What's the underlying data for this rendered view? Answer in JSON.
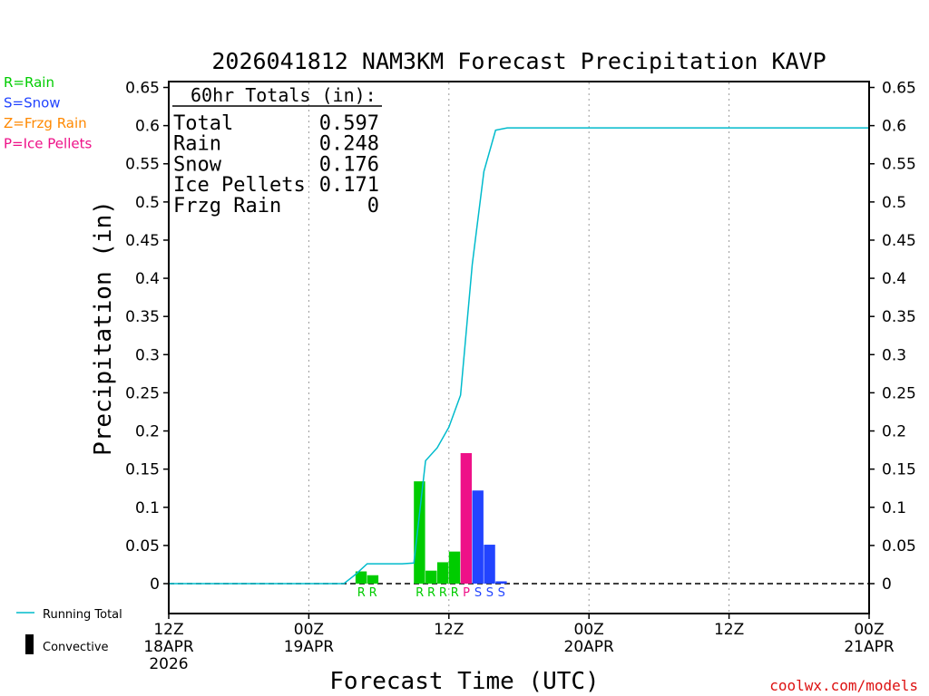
{
  "chart_data": {
    "type": "bar",
    "title": "2026041812 NAM3KM Forecast Precipitation KAVP",
    "xlabel": "Forecast Time (UTC)",
    "ylabel": "Precipitation (in)",
    "ylim": [
      -0.04,
      0.66
    ],
    "y_ticks": [
      0,
      0.05,
      0.1,
      0.15,
      0.2,
      0.25,
      0.3,
      0.35,
      0.4,
      0.45,
      0.5,
      0.55,
      0.6,
      0.65
    ],
    "y_tick_labels": [
      "0",
      "0.05",
      "0.1",
      "0.15",
      "0.2",
      "0.25",
      "0.3",
      "0.35",
      "0.4",
      "0.45",
      "0.5",
      "0.55",
      "0.6",
      "0.65"
    ],
    "x_range_hours": [
      0,
      60
    ],
    "x_ticks": [
      {
        "hour": 0,
        "lines": [
          "12Z",
          "18APR",
          "2026"
        ]
      },
      {
        "hour": 12,
        "lines": [
          "00Z",
          "19APR"
        ]
      },
      {
        "hour": 24,
        "lines": [
          "12Z"
        ]
      },
      {
        "hour": 36,
        "lines": [
          "00Z",
          "20APR"
        ]
      },
      {
        "hour": 48,
        "lines": [
          "12Z"
        ]
      },
      {
        "hour": 60,
        "lines": [
          "00Z",
          "21APR"
        ]
      }
    ],
    "type_legend": [
      {
        "code": "R",
        "label": "R=Rain",
        "color": "#00cc00"
      },
      {
        "code": "S",
        "label": "S=Snow",
        "color": "#2244ff"
      },
      {
        "code": "Z",
        "label": "Z=Frzg Rain",
        "color": "#ff8800"
      },
      {
        "code": "P",
        "label": "P=Ice Pellets",
        "color": "#ee1188"
      }
    ],
    "bars": [
      {
        "hour": 17,
        "value": 0.016,
        "type": "R"
      },
      {
        "hour": 18,
        "value": 0.011,
        "type": "R"
      },
      {
        "hour": 22,
        "value": 0.134,
        "type": "R"
      },
      {
        "hour": 23,
        "value": 0.017,
        "type": "R"
      },
      {
        "hour": 24,
        "value": 0.028,
        "type": "R"
      },
      {
        "hour": 25,
        "value": 0.042,
        "type": "R"
      },
      {
        "hour": 26,
        "value": 0.171,
        "type": "P"
      },
      {
        "hour": 27,
        "value": 0.122,
        "type": "S"
      },
      {
        "hour": 28,
        "value": 0.051,
        "type": "S"
      },
      {
        "hour": 29,
        "value": 0.003,
        "type": "S"
      }
    ],
    "running_total": {
      "name": "Running Total",
      "color": "#00bbcc",
      "hours": [
        0,
        15,
        16,
        17,
        18,
        19,
        20,
        21,
        22,
        23,
        24,
        25,
        26,
        27,
        28,
        29,
        30,
        60
      ],
      "values": [
        0,
        0,
        0.012,
        0.026,
        0.026,
        0.026,
        0.026,
        0.027,
        0.161,
        0.178,
        0.205,
        0.247,
        0.418,
        0.54,
        0.594,
        0.597,
        0.597,
        0.597
      ]
    },
    "totals_box": {
      "heading": "60hr Totals (in):",
      "rows": [
        {
          "label": "Total",
          "value": "0.597"
        },
        {
          "label": "Rain",
          "value": "0.248"
        },
        {
          "label": "Snow",
          "value": "0.176"
        },
        {
          "label": "Ice Pellets",
          "value": "0.171"
        },
        {
          "label": "Frzg Rain",
          "value": "0"
        }
      ]
    },
    "bottom_legend": [
      {
        "name": "Running Total",
        "kind": "line",
        "color": "#00bbcc"
      },
      {
        "name": "Convective",
        "kind": "bar",
        "color": "#000000"
      }
    ],
    "credit": "coolwx.com/models"
  }
}
